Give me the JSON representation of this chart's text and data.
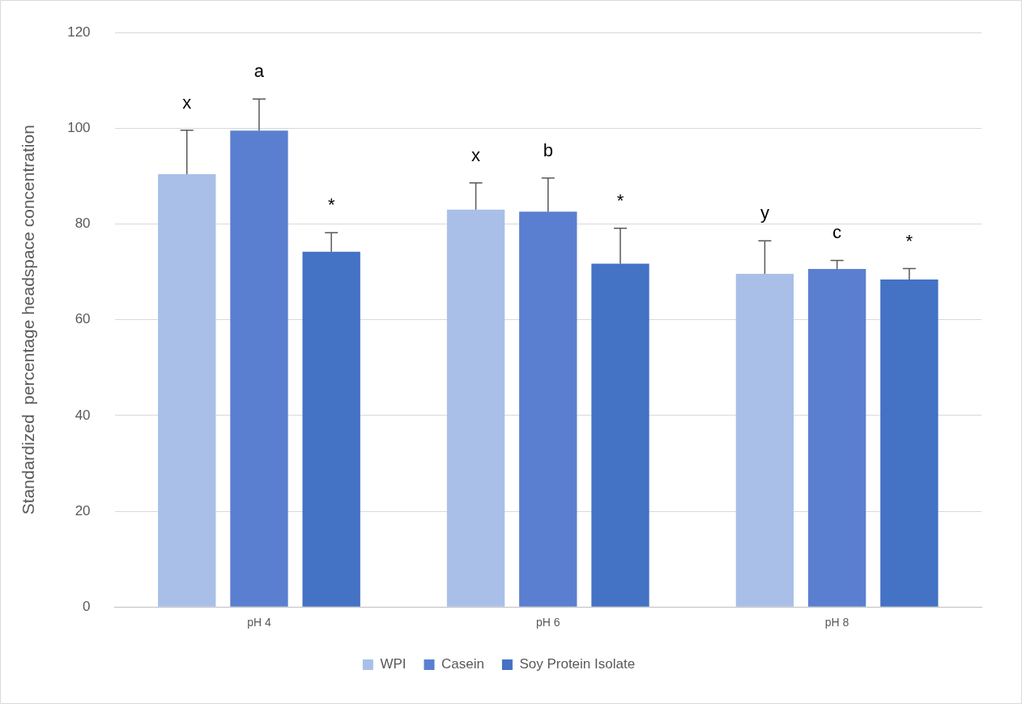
{
  "chart_data": {
    "type": "bar",
    "ylabel": "Standardized  percentage headspace concentration",
    "categories": [
      "pH 4",
      "pH 6",
      "pH 8"
    ],
    "series": [
      {
        "name": "WPI",
        "color": "#a9bfe8",
        "values": [
          90.4,
          83.0,
          69.6
        ],
        "errors": [
          9.2,
          5.6,
          6.9
        ]
      },
      {
        "name": "Casein",
        "color": "#5b7fd0",
        "values": [
          99.5,
          82.6,
          70.6
        ],
        "errors": [
          6.6,
          7.0,
          1.8
        ]
      },
      {
        "name": "Soy Protein Isolate",
        "color": "#4472c4",
        "values": [
          74.2,
          71.7,
          68.4
        ],
        "errors": [
          4.0,
          7.4,
          2.3
        ]
      }
    ],
    "annotations": [
      "x",
      "a",
      "*",
      "x",
      "b",
      "*",
      "y",
      "c",
      "*"
    ],
    "ylim": [
      0,
      120
    ],
    "yticks": [
      0,
      20,
      40,
      60,
      80,
      100,
      120
    ],
    "grid": "y",
    "legend": "bottom"
  }
}
